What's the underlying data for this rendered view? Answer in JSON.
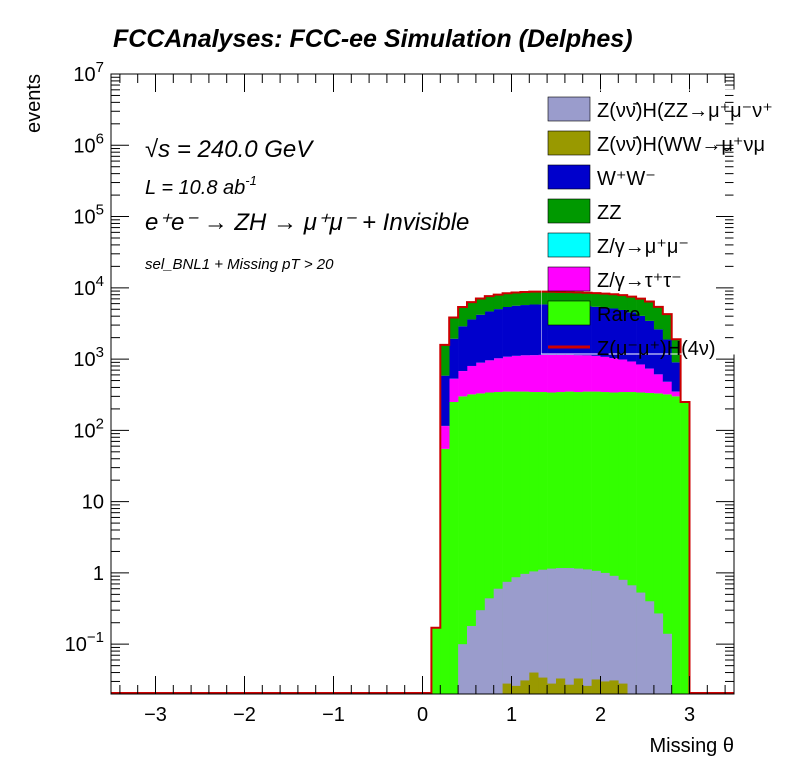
{
  "chart_data": {
    "type": "bar",
    "title": "FCCAnalyses: FCC-ee Simulation (Delphes)",
    "xlabel": "Missing θ",
    "ylabel": "events",
    "xlim": [
      -3.5,
      3.5
    ],
    "ylim": [
      0.02,
      10000000
    ],
    "log_y": true,
    "stacked": true,
    "x_ticks": [
      "−3",
      "−2",
      "−1",
      "0",
      "1",
      "2",
      "3"
    ],
    "y_ticks": [
      {
        "value": 0.1,
        "base": "10",
        "exp": "−1"
      },
      {
        "value": 1,
        "base": "1",
        "exp": ""
      },
      {
        "value": 10,
        "base": "10",
        "exp": ""
      },
      {
        "value": 100,
        "base": "10",
        "exp": "2"
      },
      {
        "value": 1000,
        "base": "10",
        "exp": "3"
      },
      {
        "value": 10000,
        "base": "10",
        "exp": "4"
      },
      {
        "value": 100000,
        "base": "10",
        "exp": "5"
      },
      {
        "value": 1000000,
        "base": "10",
        "exp": "6"
      },
      {
        "value": 10000000,
        "base": "10",
        "exp": "7"
      }
    ],
    "annotations": {
      "sqrt_s": "√s = 240.0 GeV",
      "lumi": "L = 10.8 ab",
      "lumi_exp": "-1",
      "process": "e⁺e⁻ → ZH → μ⁺μ⁻ + Invisible",
      "selection": "sel_BNL1 + Missing pT > 20"
    },
    "legend_position": "top-right",
    "legend": [
      {
        "name": "Z(νν̄)H(ZZ→μ⁺μ⁻ν⁺",
        "color": "#9a9ccc",
        "kind": "box"
      },
      {
        "name": "Z(νν̄)H(WW→μ⁺νμ",
        "color": "#999900",
        "kind": "box"
      },
      {
        "name": "W⁺W⁻",
        "color": "#0000cc",
        "kind": "box"
      },
      {
        "name": "ZZ",
        "color": "#009900",
        "kind": "box"
      },
      {
        "name": "Z/γ→μ⁺μ⁻",
        "color": "#00ffff",
        "kind": "box"
      },
      {
        "name": "Z/γ→τ⁺τ⁻",
        "color": "#ff00ff",
        "kind": "box"
      },
      {
        "name": "Rare",
        "color": "#33ff00",
        "kind": "box"
      },
      {
        "name": "Z(μ⁻μ⁺)H(4ν)",
        "color": "#cc0000",
        "kind": "line"
      }
    ],
    "bin_width": 0.1,
    "x_bin_centers": [
      0.15,
      0.25,
      0.35,
      0.45,
      0.55,
      0.65,
      0.75,
      0.85,
      0.95,
      1.05,
      1.15,
      1.25,
      1.35,
      1.45,
      1.55,
      1.65,
      1.75,
      1.85,
      1.95,
      2.05,
      2.15,
      2.25,
      2.35,
      2.45,
      2.55,
      2.65,
      2.75,
      2.85,
      2.95
    ],
    "series": [
      {
        "name": "Rare",
        "color": "#33ff00",
        "values": [
          0.17,
          55,
          250,
          300,
          320,
          330,
          340,
          345,
          350,
          350,
          350,
          345,
          345,
          340,
          345,
          350,
          345,
          350,
          350,
          345,
          340,
          345,
          345,
          340,
          335,
          330,
          320,
          300,
          250
        ]
      },
      {
        "name": "Z/γ→τ⁺τ⁻",
        "color": "#ff00ff",
        "values": [
          0,
          60,
          280,
          380,
          480,
          560,
          620,
          680,
          730,
          760,
          780,
          790,
          800,
          805,
          800,
          795,
          790,
          780,
          760,
          730,
          690,
          640,
          580,
          500,
          400,
          280,
          160,
          50,
          0
        ]
      },
      {
        "name": "Z/γ→μ⁺μ⁻",
        "color": "#00ffff",
        "values": [
          0,
          0.5,
          1,
          1,
          1,
          1,
          1,
          1,
          1,
          1,
          1,
          1,
          1,
          1,
          1,
          1,
          1,
          1,
          1,
          1,
          1,
          1,
          1,
          1,
          1,
          1,
          1,
          1,
          0
        ]
      },
      {
        "name": "W⁺W⁻",
        "color": "#0000cc",
        "values": [
          0,
          470,
          1400,
          2200,
          2800,
          3300,
          3700,
          4000,
          4300,
          4500,
          4600,
          4700,
          4700,
          4650,
          4600,
          4550,
          4500,
          4400,
          4300,
          4200,
          4100,
          3900,
          3600,
          3200,
          2700,
          2000,
          1400,
          550,
          0
        ]
      },
      {
        "name": "ZZ",
        "color": "#009900",
        "values": [
          0,
          1000,
          1900,
          2500,
          2700,
          2900,
          3000,
          3000,
          3000,
          3000,
          3000,
          3000,
          3000,
          3000,
          3000,
          3000,
          3000,
          3000,
          3000,
          3000,
          3000,
          3000,
          3000,
          3000,
          3000,
          2800,
          2400,
          1000,
          0
        ]
      }
    ],
    "overlay_series": [
      {
        "name": "Z(νν̄)H(ZZ→μ⁺μ⁻ν⁺",
        "color": "#9a9ccc",
        "values": [
          0,
          0,
          0.015,
          0.1,
          0.18,
          0.3,
          0.44,
          0.6,
          0.75,
          0.87,
          0.97,
          1.05,
          1.11,
          1.15,
          1.17,
          1.17,
          1.15,
          1.12,
          1.07,
          1.0,
          0.91,
          0.8,
          0.67,
          0.53,
          0.4,
          0.27,
          0.14,
          0,
          0
        ]
      },
      {
        "name": "Z(νν̄)H(WW→μ⁺νμ",
        "color": "#999900",
        "values": [
          0,
          0,
          0,
          0,
          0,
          0,
          0,
          0,
          0.028,
          0.026,
          0.031,
          0.04,
          0.034,
          0.028,
          0.033,
          0.027,
          0.033,
          0.026,
          0.032,
          0.03,
          0.031,
          0.028,
          0,
          0,
          0,
          0,
          0,
          0,
          0
        ]
      }
    ]
  }
}
